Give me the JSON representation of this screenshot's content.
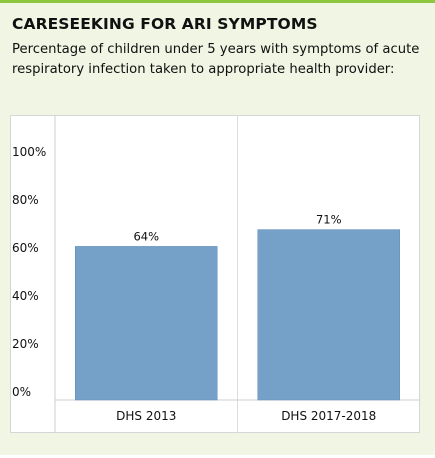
{
  "title": "CARESEEKING FOR ARI SYMPTOMS",
  "subtitle": "Percentage of children under 5 years with symptoms of acute respiratory infection taken to appropriate health provider:",
  "chart_data": {
    "type": "bar",
    "title": "CARESEEKING FOR ARI SYMPTOMS",
    "subtitle": "Percentage of children under 5 years with symptoms of acute respiratory infection taken to appropriate health provider:",
    "xlabel": "",
    "ylabel": "",
    "categories": [
      "DHS 2013",
      "DHS 2017-2018"
    ],
    "values": [
      64,
      71
    ],
    "value_labels": [
      "64%",
      "71%"
    ],
    "yticks": [
      0,
      20,
      40,
      60,
      80,
      100
    ],
    "ytick_labels": [
      "0%",
      "20%",
      "40%",
      "60%",
      "80%",
      "100%"
    ],
    "ylim": [
      0,
      100
    ],
    "bar_color": "#75a1c9",
    "background_color": "#f0f5e4",
    "accent_color": "#8dc63f",
    "grid": false,
    "legend": "none"
  }
}
